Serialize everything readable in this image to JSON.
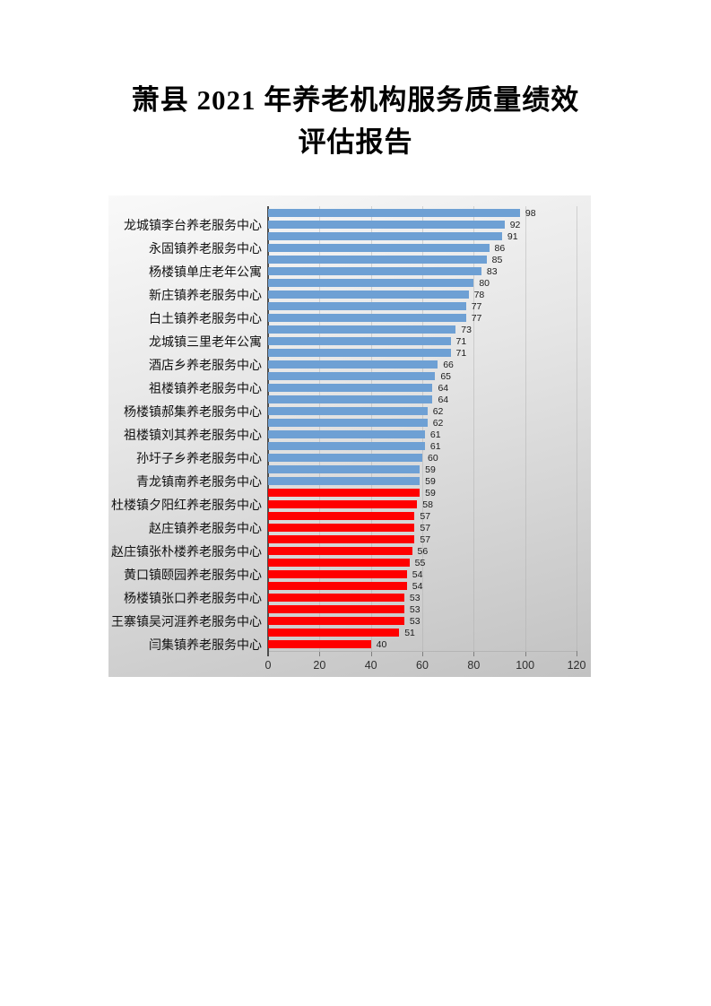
{
  "document": {
    "title_line1": "萧县 2021 年养老机构服务质量绩效",
    "title_line2": "评估报告"
  },
  "chart_data": {
    "type": "bar",
    "orientation": "horizontal",
    "title": "",
    "xlabel": "",
    "ylabel": "",
    "xlim": [
      0,
      120
    ],
    "xticks": [
      0,
      20,
      40,
      60,
      80,
      100,
      120
    ],
    "grid": true,
    "legend_shown": false,
    "value_labels_shown": true,
    "category_label_interval": 2,
    "categories": [
      "龙城镇李台养老服务中心",
      "永固镇养老服务中心",
      "杨楼镇单庄老年公寓",
      "新庄镇养老服务中心",
      "白土镇养老服务中心",
      "龙城镇三里老年公寓",
      "酒店乡养老服务中心",
      "祖楼镇养老服务中心",
      "杨楼镇郝集养老服务中心",
      "祖楼镇刘其养老服务中心",
      "孙圩子乡养老服务中心",
      "青龙镇南养老服务中心",
      "杜楼镇夕阳红养老服务中心",
      "赵庄镇养老服务中心",
      "赵庄镇张朴楼养老服务中心",
      "黄口镇颐园养老服务中心",
      "杨楼镇张口养老服务中心",
      "王寨镇吴河涯养老服务中心",
      "闫集镇养老服务中心"
    ],
    "values": [
      98,
      92,
      91,
      86,
      85,
      83,
      80,
      78,
      77,
      77,
      73,
      71,
      71,
      66,
      65,
      64,
      64,
      62,
      62,
      61,
      61,
      60,
      59,
      59,
      59,
      58,
      57,
      57,
      57,
      56,
      55,
      54,
      54,
      53,
      53,
      53,
      51,
      40
    ],
    "bar_color_high": "#6EA0D4",
    "bar_color_low": "#FF0000",
    "low_color_start_index": 24,
    "plot_background": "gray-gradient"
  }
}
